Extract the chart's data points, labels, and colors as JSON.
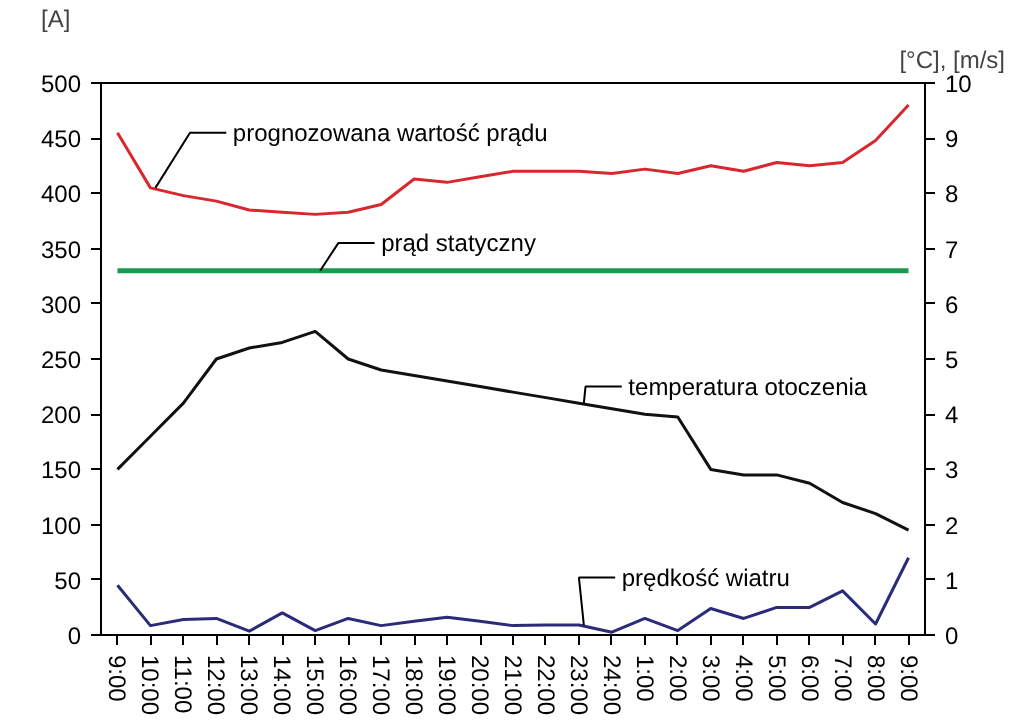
{
  "chart_data": {
    "type": "line",
    "ylabel": "[A]",
    "y2label": "[°C], [m/s]",
    "categories": [
      "9:00",
      "10:00",
      "11:00",
      "12:00",
      "13:00",
      "14:00",
      "15:00",
      "16:00",
      "17:00",
      "18:00",
      "19:00",
      "20:00",
      "21:00",
      "22:00",
      "23:00",
      "24:00",
      "1:00",
      "2:00",
      "3:00",
      "4:00",
      "5:00",
      "6:00",
      "7:00",
      "8:00",
      "9:00"
    ],
    "ylim": [
      0,
      500
    ],
    "yticks": [
      0,
      50,
      100,
      150,
      200,
      250,
      300,
      350,
      400,
      450,
      500
    ],
    "y2lim": [
      0,
      10
    ],
    "y2ticks": [
      0,
      1,
      2,
      3,
      4,
      5,
      6,
      7,
      8,
      9,
      10
    ],
    "grid": false,
    "legend": false,
    "series": [
      {
        "name": "prognozowana wartość prądu",
        "color": "#d7282f",
        "values": [
          455,
          405,
          398,
          393,
          385,
          383,
          381,
          383,
          390,
          413,
          410,
          415,
          420,
          420,
          420,
          418,
          422,
          418,
          425,
          420,
          428,
          425,
          428,
          448,
          480
        ]
      },
      {
        "name": "prąd statyczny",
        "color": "#1a9a50",
        "values": [
          330,
          330,
          330,
          330,
          330,
          330,
          330,
          330,
          330,
          330,
          330,
          330,
          330,
          330,
          330,
          330,
          330,
          330,
          330,
          330,
          330,
          330,
          330,
          330,
          330
        ]
      },
      {
        "name": "temperatura otoczenia",
        "color": "#111111",
        "axis": "y2",
        "values": [
          3.0,
          3.6,
          4.2,
          5.0,
          5.2,
          5.3,
          5.5,
          5.0,
          4.8,
          4.7,
          4.6,
          4.5,
          4.4,
          4.3,
          4.2,
          4.1,
          4.0,
          3.95,
          3.0,
          2.9,
          2.9,
          2.75,
          2.4,
          2.2,
          1.9
        ]
      },
      {
        "name": "prędkość wiatru",
        "color": "#2b2b7a",
        "axis": "y2",
        "values": [
          0.9,
          0.17,
          0.28,
          0.3,
          0.07,
          0.4,
          0.08,
          0.3,
          0.17,
          0.25,
          0.32,
          0.25,
          0.17,
          0.18,
          0.18,
          0.05,
          0.3,
          0.08,
          0.48,
          0.3,
          0.5,
          0.5,
          0.8,
          0.2,
          1.4
        ]
      }
    ]
  }
}
